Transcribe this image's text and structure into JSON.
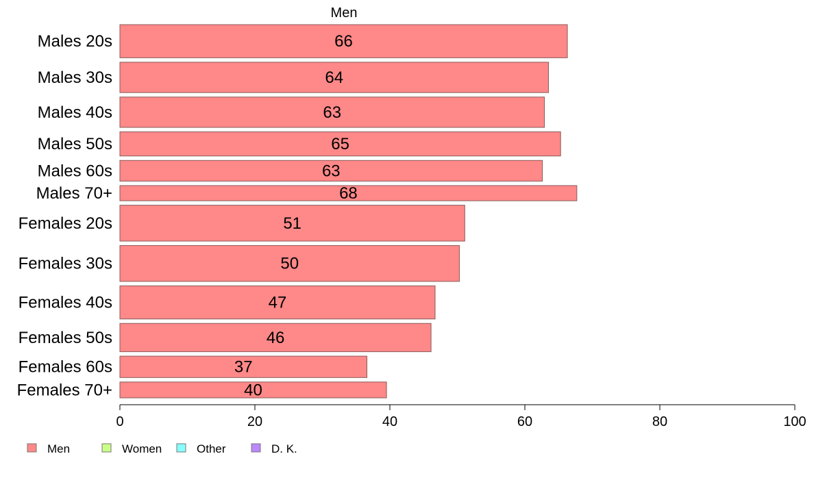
{
  "chart_data": {
    "type": "bar",
    "orientation": "horizontal",
    "title": "Men",
    "categories": [
      "Males 20s",
      "Males 30s",
      "Males 40s",
      "Males 50s",
      "Males 60s",
      "Males 70+",
      "Females 20s",
      "Females 30s",
      "Females 40s",
      "Females 50s",
      "Females 60s",
      "Females 70+"
    ],
    "values": [
      66.3,
      63.5,
      62.9,
      65.3,
      62.6,
      67.7,
      51.1,
      50.3,
      46.7,
      46.1,
      36.6,
      39.5
    ],
    "value_labels": [
      "66",
      "64",
      "63",
      "65",
      "63",
      "68",
      "51",
      "50",
      "47",
      "46",
      "37",
      "40"
    ],
    "bar_weights": [
      48,
      44,
      44,
      35,
      30,
      22,
      52,
      52,
      48,
      41,
      31,
      23
    ],
    "xlim": [
      0,
      100
    ],
    "xticks": [
      "0",
      "20",
      "40",
      "60",
      "80",
      "100"
    ],
    "xlabel": "",
    "ylabel": "",
    "grid": false,
    "bar_color": "#ff8888",
    "bar_edge_color": "#8a5a5a",
    "legend": {
      "position": "bottom-left",
      "items": [
        {
          "label": "Men",
          "color": "#ff8888"
        },
        {
          "label": "Women",
          "color": "#ccff88"
        },
        {
          "label": "Other",
          "color": "#88ffff"
        },
        {
          "label": "D. K.",
          "color": "#bb88ff"
        }
      ]
    }
  }
}
